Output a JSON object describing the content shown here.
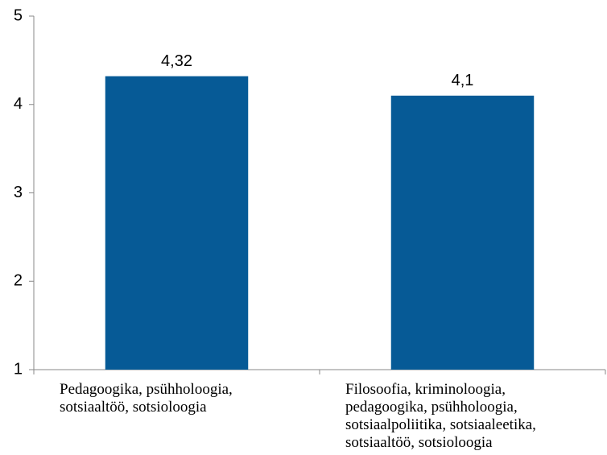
{
  "chart_data": {
    "type": "bar",
    "categories": [
      "Pedagoogika, psühholoogia, sotsiaaltöö, sotsioloogia",
      "Filosoofia, kriminoloogia, pedagoogika, psühholoogia, sotsiaalpoliitika, sotsiaaleetika, sotsiaaltöö, sotsioloogia"
    ],
    "values": [
      4.32,
      4.1
    ],
    "value_labels": [
      "4,32",
      "4,1"
    ],
    "color": "#065a96",
    "ylim": [
      1,
      5
    ],
    "yticks": [
      1,
      2,
      3,
      4,
      5
    ],
    "grid": false
  }
}
